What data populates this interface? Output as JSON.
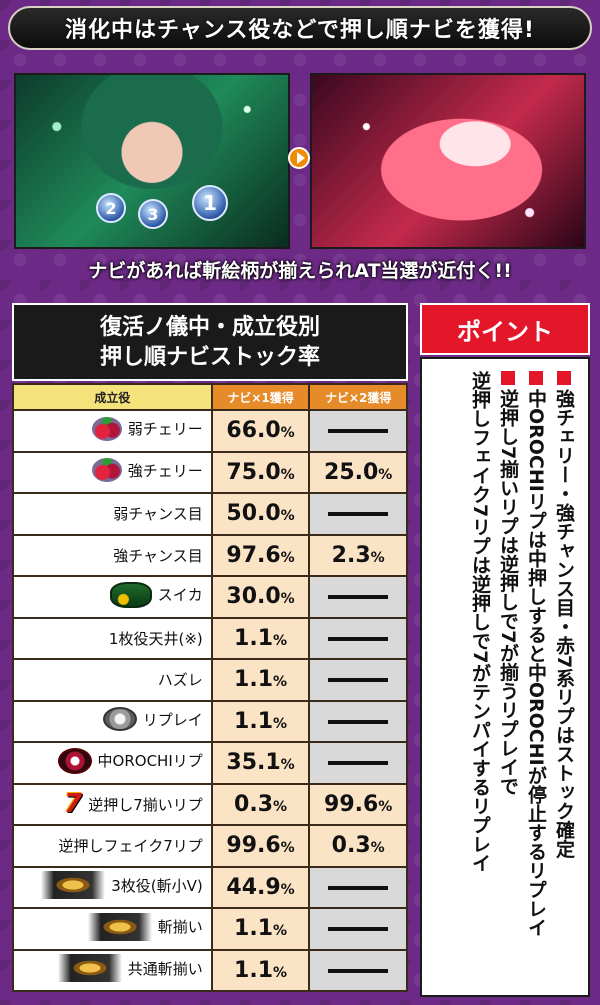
{
  "banner": {
    "title": "消化中はチャンス役などで押し順ナビを獲得!"
  },
  "screens": {
    "coins": [
      "2",
      "3",
      "1"
    ]
  },
  "caption": "ナビがあれば斬絵柄が揃えられAT当選が近付く!!",
  "table": {
    "title_line1": "復活ノ儀中・成立役別",
    "title_line2": "押し順ナビストック率",
    "headers": {
      "role": "成立役",
      "navi1": "ナビ×1獲得",
      "navi2": "ナビ×2獲得"
    },
    "rows": [
      {
        "label": "弱チェリー",
        "icon": "cherry-icon",
        "navi1": "66.0",
        "navi2": ""
      },
      {
        "label": "強チェリー",
        "icon": "cherry-icon",
        "navi1": "75.0",
        "navi2": "25.0"
      },
      {
        "label": "弱チャンス目",
        "icon": "",
        "navi1": "50.0",
        "navi2": ""
      },
      {
        "label": "強チャンス目",
        "icon": "",
        "navi1": "97.6",
        "navi2": "2.3"
      },
      {
        "label": "スイカ",
        "icon": "watermelon-icon",
        "navi1": "30.0",
        "navi2": ""
      },
      {
        "label": "1枚役天井(※)",
        "icon": "",
        "navi1": "1.1",
        "navi2": ""
      },
      {
        "label": "ハズレ",
        "icon": "",
        "navi1": "1.1",
        "navi2": ""
      },
      {
        "label": "リプレイ",
        "icon": "replay-coin-icon",
        "navi1": "1.1",
        "navi2": ""
      },
      {
        "label": "中OROCHIリプ",
        "icon": "orochi-emblem-icon",
        "navi1": "35.1",
        "navi2": ""
      },
      {
        "label": "逆押し7揃いリプ",
        "icon": "red-seven-icon",
        "navi1": "0.3",
        "navi2": "99.6"
      },
      {
        "label": "逆押しフェイク7リプ",
        "icon": "",
        "navi1": "99.6",
        "navi2": "0.3"
      },
      {
        "label": "3枚役(斬小V)",
        "icon": "zan-emblem-icon",
        "navi1": "44.9",
        "navi2": ""
      },
      {
        "label": "斬揃い",
        "icon": "zan-emblem-icon",
        "navi1": "1.1",
        "navi2": ""
      },
      {
        "label": "共通斬揃い",
        "icon": "zan-emblem-icon",
        "navi1": "1.1",
        "navi2": ""
      }
    ],
    "percent_unit": "%"
  },
  "point": {
    "heading": "ポイント",
    "items": [
      "強チェリー・強チャンス目・赤7系リプはストック確定",
      "中OROCHIリプは中押しすると中OROCHIが停止するリプレイ",
      "逆押し7揃いリプは逆押しで7が揃うリプレイで",
      "逆押しフェイク7リプは逆押しで7がテンパイするリプレイ"
    ]
  },
  "colors": {
    "background": "#6c2a86",
    "point_red": "#e3162a",
    "navi_header": "#e78a2a",
    "role_header": "#f3e37a",
    "value_cell": "#fbe3c6"
  }
}
